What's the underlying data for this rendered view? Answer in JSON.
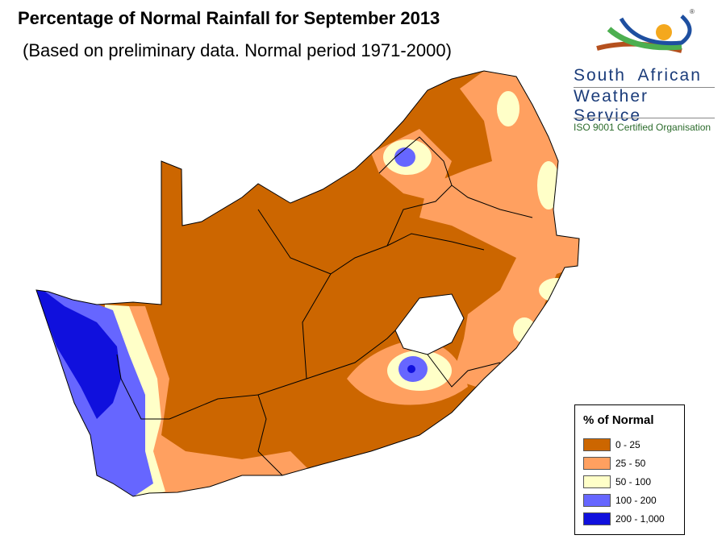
{
  "header": {
    "title": "Percentage of Normal Rainfall for September  2013",
    "subtitle": "(Based on preliminary data. Normal period 1971-2000)"
  },
  "logo": {
    "line1": "South African",
    "line2": "Weather Service",
    "certification": "ISO 9001 Certified Organisation",
    "registered": "®"
  },
  "legend": {
    "title": "% of Normal",
    "items": [
      {
        "label": "0 - 25",
        "color": "#cc6600"
      },
      {
        "label": "25 - 50",
        "color": "#ffa060"
      },
      {
        "label": "50 - 100",
        "color": "#ffffc8"
      },
      {
        "label": "100 - 200",
        "color": "#6666ff"
      },
      {
        "label": "200 - 1,000",
        "color": "#1010dd"
      }
    ]
  }
}
